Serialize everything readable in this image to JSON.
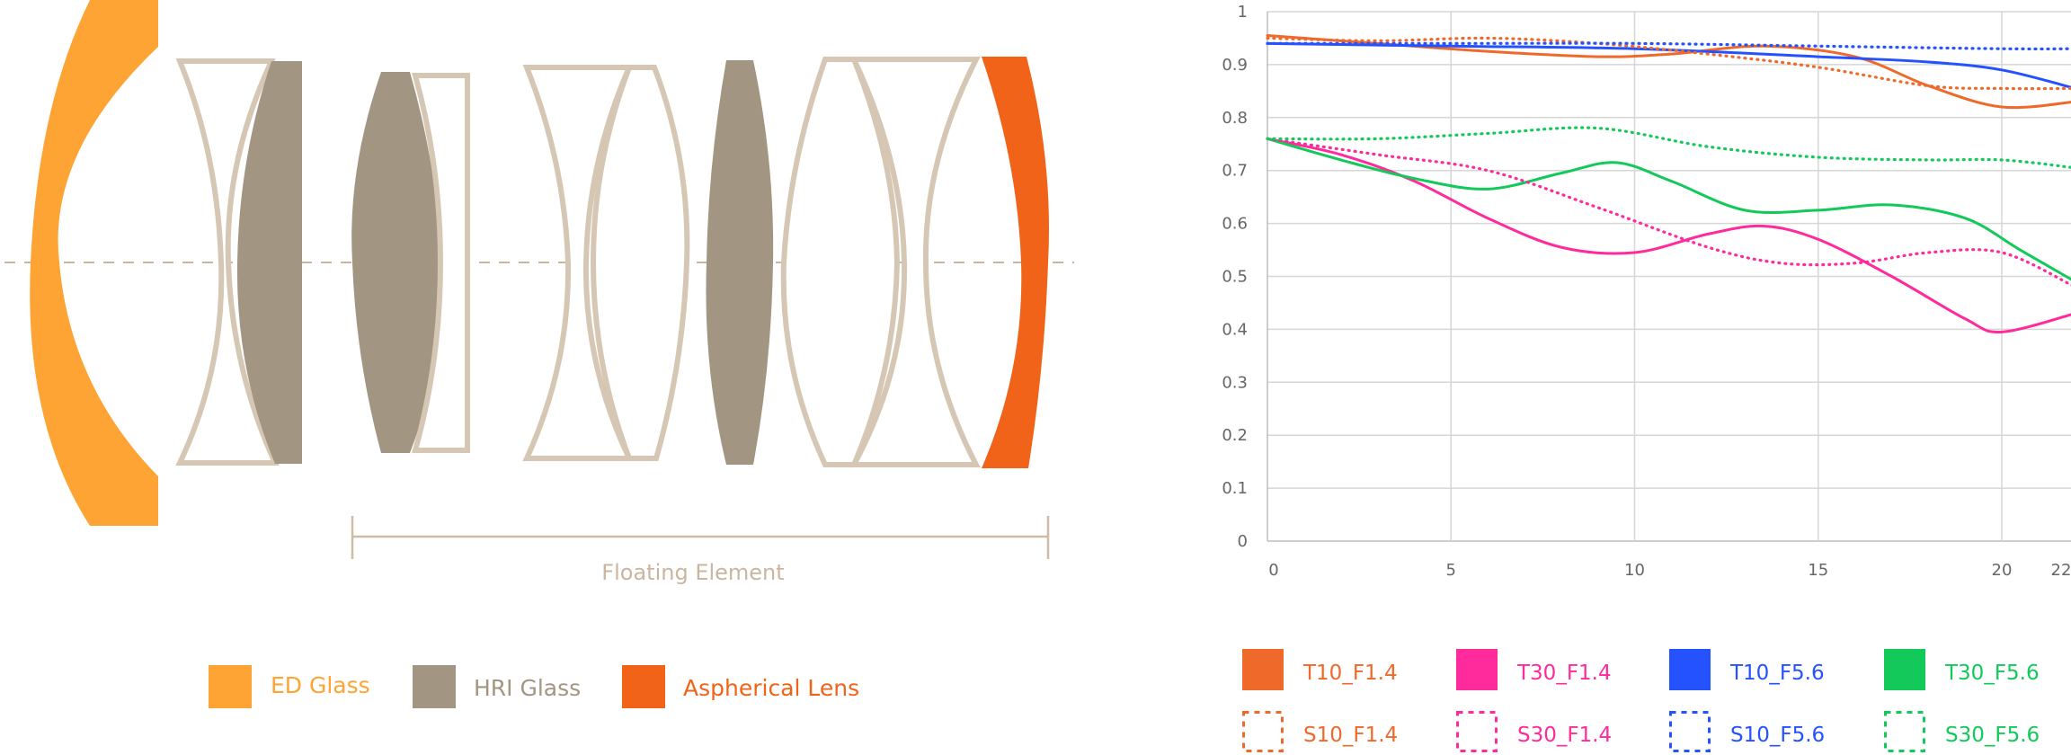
{
  "colors": {
    "ed_glass": "#FDA434",
    "hri_glass": "#A29582",
    "aspherical": "#F06318",
    "outline": "#D6C7B5",
    "axis_text": "#666666",
    "grid": "#D3D3D3",
    "t10_f14": "#EF6A2A",
    "t30_f14": "#FF2A9B",
    "t10_f56": "#2452FF",
    "t30_f56": "#12C95A"
  },
  "lens_diagram": {
    "floating_label": "Floating Element",
    "legend": [
      {
        "label": "ED Glass",
        "color": "#FDA434",
        "text_color": "#FDA434"
      },
      {
        "label": "HRI Glass",
        "color": "#A29582",
        "text_color": "#A29582"
      },
      {
        "label": "Aspherical Lens",
        "color": "#F06318",
        "text_color": "#F06318"
      }
    ]
  },
  "chart_data": {
    "type": "line",
    "title": "",
    "xlabel": "",
    "ylabel": "",
    "xlim": [
      0,
      22
    ],
    "ylim": [
      0,
      1
    ],
    "x_ticks": [
      0,
      5,
      10,
      15,
      20,
      22
    ],
    "y_ticks": [
      0,
      0.1,
      0.2,
      0.3,
      0.4,
      0.5,
      0.6,
      0.7,
      0.8,
      0.9,
      1
    ],
    "grid": true,
    "legend_position": "bottom",
    "series": [
      {
        "name": "T10_F1.4",
        "color": "#EF6A2A",
        "dash": "solid",
        "x": [
          0,
          3,
          6,
          9,
          11,
          13.5,
          16,
          18,
          20,
          22
        ],
        "y": [
          0.955,
          0.94,
          0.925,
          0.915,
          0.92,
          0.935,
          0.915,
          0.86,
          0.82,
          0.83
        ]
      },
      {
        "name": "T30_F1.4",
        "color": "#FF2A9B",
        "dash": "solid",
        "x": [
          0,
          2,
          4,
          6,
          8,
          10,
          12,
          13.5,
          15,
          17,
          19,
          20,
          22
        ],
        "y": [
          0.76,
          0.73,
          0.68,
          0.61,
          0.555,
          0.545,
          0.58,
          0.595,
          0.57,
          0.5,
          0.42,
          0.395,
          0.43
        ]
      },
      {
        "name": "T10_F5.6",
        "color": "#2452FF",
        "dash": "solid",
        "x": [
          0,
          5,
          10,
          15,
          18,
          20,
          22
        ],
        "y": [
          0.94,
          0.935,
          0.93,
          0.915,
          0.905,
          0.89,
          0.855
        ]
      },
      {
        "name": "T30_F5.6",
        "color": "#12C95A",
        "dash": "solid",
        "x": [
          0,
          2,
          4,
          6,
          8,
          9.5,
          11,
          13,
          15,
          17,
          19,
          20.5,
          22
        ],
        "y": [
          0.76,
          0.72,
          0.685,
          0.665,
          0.695,
          0.715,
          0.68,
          0.625,
          0.625,
          0.635,
          0.61,
          0.55,
          0.49
        ]
      },
      {
        "name": "S10_F1.4",
        "color": "#EF6A2A",
        "dash": "dotted",
        "x": [
          0,
          3,
          6,
          9,
          12,
          15,
          18,
          20,
          22
        ],
        "y": [
          0.95,
          0.945,
          0.95,
          0.94,
          0.92,
          0.895,
          0.86,
          0.855,
          0.855
        ]
      },
      {
        "name": "S30_F1.4",
        "color": "#FF2A9B",
        "dash": "dotted",
        "x": [
          0,
          3,
          6,
          9,
          12,
          14,
          16,
          18,
          20,
          22
        ],
        "y": [
          0.76,
          0.73,
          0.7,
          0.63,
          0.555,
          0.525,
          0.525,
          0.545,
          0.545,
          0.48
        ]
      },
      {
        "name": "S10_F5.6",
        "color": "#2452FF",
        "dash": "dotted",
        "x": [
          0,
          5,
          10,
          15,
          20,
          22
        ],
        "y": [
          0.94,
          0.94,
          0.94,
          0.935,
          0.93,
          0.93
        ]
      },
      {
        "name": "S30_F5.6",
        "color": "#12C95A",
        "dash": "dotted",
        "x": [
          0,
          3,
          6,
          9,
          12,
          15,
          18,
          20,
          22
        ],
        "y": [
          0.76,
          0.76,
          0.77,
          0.78,
          0.745,
          0.725,
          0.72,
          0.72,
          0.705
        ]
      }
    ],
    "legend": [
      {
        "name": "T10_F1.4",
        "color": "#EF6A2A",
        "style": "filled"
      },
      {
        "name": "T30_F1.4",
        "color": "#FF2A9B",
        "style": "filled"
      },
      {
        "name": "T10_F5.6",
        "color": "#2452FF",
        "style": "filled"
      },
      {
        "name": "T30_F5.6",
        "color": "#12C95A",
        "style": "filled"
      },
      {
        "name": "S10_F1.4",
        "color": "#EF6A2A",
        "style": "dashed"
      },
      {
        "name": "S30_F1.4",
        "color": "#FF2A9B",
        "style": "dashed"
      },
      {
        "name": "S10_F5.6",
        "color": "#2452FF",
        "style": "dashed"
      },
      {
        "name": "S30_F5.6",
        "color": "#12C95A",
        "style": "dashed"
      }
    ]
  }
}
